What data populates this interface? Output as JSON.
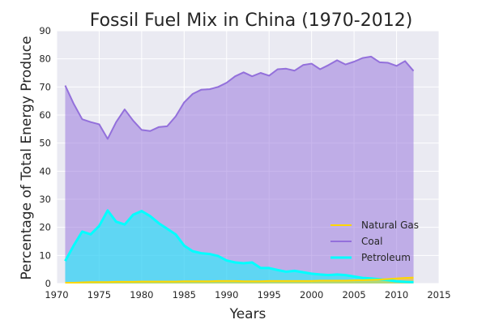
{
  "chart_data": {
    "type": "area",
    "title": "Fossil Fuel Mix in China (1970-2012)",
    "xlabel": "Years",
    "ylabel": "Percentage of Total Energy Produce",
    "xlim": [
      1970,
      2015
    ],
    "ylim": [
      0,
      90
    ],
    "xticks": [
      1970,
      1975,
      1980,
      1985,
      1990,
      1995,
      2000,
      2005,
      2010,
      2015
    ],
    "yticks": [
      0,
      10,
      20,
      30,
      40,
      50,
      60,
      70,
      80,
      90
    ],
    "grid": true,
    "legend_position": "lower-right",
    "x": [
      1971,
      1972,
      1973,
      1974,
      1975,
      1976,
      1977,
      1978,
      1979,
      1980,
      1981,
      1982,
      1983,
      1984,
      1985,
      1986,
      1987,
      1988,
      1989,
      1990,
      1991,
      1992,
      1993,
      1994,
      1995,
      1996,
      1997,
      1998,
      1999,
      2000,
      2001,
      2002,
      2003,
      2004,
      2005,
      2006,
      2007,
      2008,
      2009,
      2010,
      2011,
      2012
    ],
    "series": [
      {
        "name": "Natural Gas",
        "color": "#ffd700",
        "values": [
          0.3,
          0.3,
          0.4,
          0.5,
          0.5,
          0.5,
          0.6,
          0.6,
          0.6,
          0.7,
          0.7,
          0.7,
          0.7,
          0.7,
          0.8,
          0.8,
          0.8,
          0.8,
          0.9,
          0.9,
          0.9,
          0.8,
          0.8,
          0.8,
          0.9,
          0.9,
          0.9,
          0.9,
          0.9,
          0.9,
          1.0,
          1.0,
          1.0,
          1.0,
          1.1,
          1.2,
          1.3,
          1.4,
          1.6,
          1.8,
          2.0,
          2.1
        ]
      },
      {
        "name": "Coal",
        "color": "#9370db",
        "values": [
          70.5,
          64.0,
          58.5,
          57.5,
          56.7,
          51.5,
          57.5,
          62.0,
          58.0,
          54.7,
          54.3,
          55.7,
          56.0,
          59.5,
          64.5,
          67.5,
          69.0,
          69.2,
          70.0,
          71.5,
          73.8,
          75.2,
          73.8,
          75.0,
          74.0,
          76.3,
          76.5,
          75.8,
          77.8,
          78.3,
          76.3,
          77.8,
          79.5,
          78.0,
          79.0,
          80.3,
          80.8,
          78.8,
          78.6,
          77.5,
          79.2,
          75.7
        ]
      },
      {
        "name": "Petroleum",
        "color": "#00ffff",
        "values": [
          8.0,
          13.5,
          18.5,
          17.5,
          20.5,
          26.0,
          22.0,
          21.0,
          24.5,
          25.8,
          24.0,
          21.5,
          19.5,
          17.5,
          13.5,
          11.5,
          10.8,
          10.5,
          9.8,
          8.2,
          7.5,
          7.2,
          7.5,
          5.5,
          5.5,
          4.8,
          4.2,
          4.5,
          4.0,
          3.5,
          3.2,
          3.0,
          3.2,
          3.0,
          2.5,
          2.0,
          1.8,
          1.5,
          1.2,
          0.8,
          0.6,
          0.5
        ]
      }
    ]
  }
}
